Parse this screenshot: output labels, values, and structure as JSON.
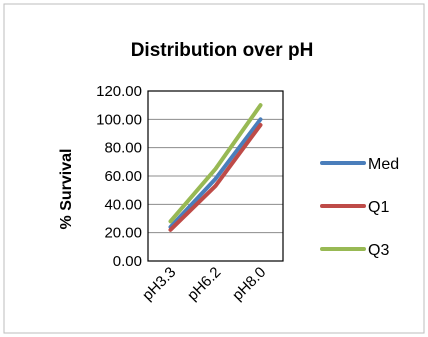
{
  "chart_data": {
    "type": "line",
    "title": "Distribution over pH",
    "xlabel": "",
    "ylabel": "% Survival",
    "categories": [
      "pH3.3",
      "pH6.2",
      "pH8.0"
    ],
    "ylim": [
      0,
      120
    ],
    "yticks": [
      "0.00",
      "20.00",
      "40.00",
      "60.00",
      "80.00",
      "100.00",
      "120.00"
    ],
    "grid": true,
    "legend_position": "right",
    "series": [
      {
        "name": "Med",
        "values": [
          24,
          58,
          100
        ],
        "color": "#4a7ebb"
      },
      {
        "name": "Q1",
        "values": [
          22,
          53,
          96
        ],
        "color": "#be4b48"
      },
      {
        "name": "Q3",
        "values": [
          28,
          65,
          110
        ],
        "color": "#98b954"
      }
    ]
  }
}
